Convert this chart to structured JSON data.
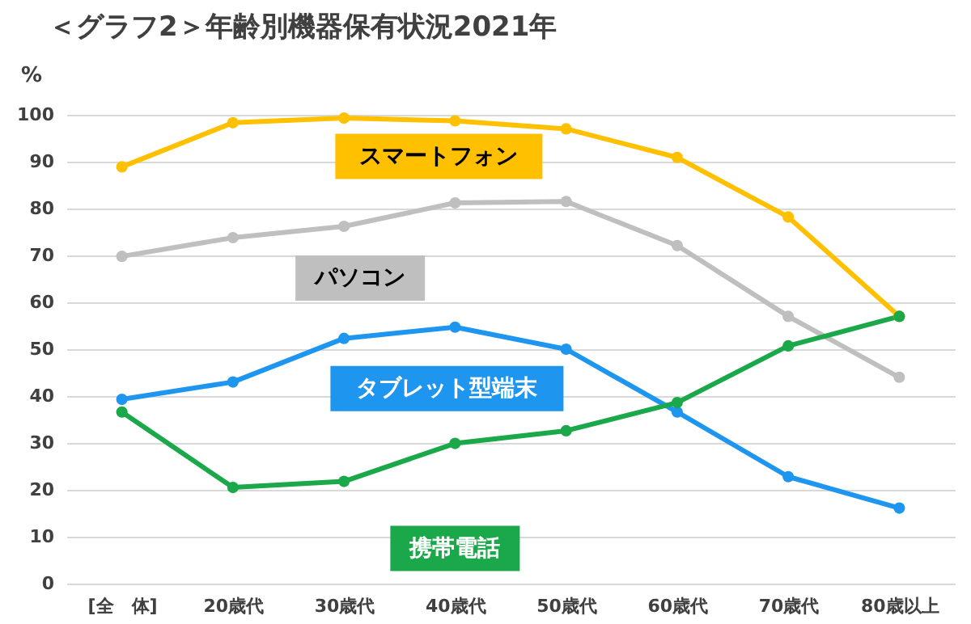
{
  "chart_data": {
    "type": "line",
    "title": "＜グラフ2＞年齢別機器保有状況2021年",
    "ylabel": "%",
    "categories": [
      "[全　体]",
      "20歳代",
      "30歳代",
      "40歳代",
      "50歳代",
      "60歳代",
      "70歳代",
      "80歳以上"
    ],
    "series": [
      {
        "name": "スマートフォン",
        "color": "#ffc000",
        "values": [
          88.9,
          98.3,
          99.3,
          98.7,
          97.0,
          90.9,
          78.2,
          57.0
        ]
      },
      {
        "name": "パソコン",
        "color": "#bfbfbf",
        "values": [
          69.8,
          73.8,
          76.2,
          81.2,
          81.5,
          72.1,
          57.0,
          44.0
        ]
      },
      {
        "name": "タブレット型端末",
        "color": "#1e96f0",
        "values": [
          39.3,
          43.0,
          52.3,
          54.7,
          50.0,
          36.6,
          22.8,
          16.1
        ]
      },
      {
        "name": "携帯電話",
        "color": "#1aa84a",
        "values": [
          36.6,
          20.5,
          21.8,
          29.9,
          32.6,
          38.6,
          50.7,
          57.0
        ]
      }
    ],
    "ylim": [
      0,
      100
    ],
    "yticks": [
      0,
      10,
      20,
      30,
      40,
      50,
      60,
      70,
      80,
      90,
      100
    ],
    "grid": "y",
    "marker": "circle",
    "line_style": "solid",
    "legend": false
  }
}
